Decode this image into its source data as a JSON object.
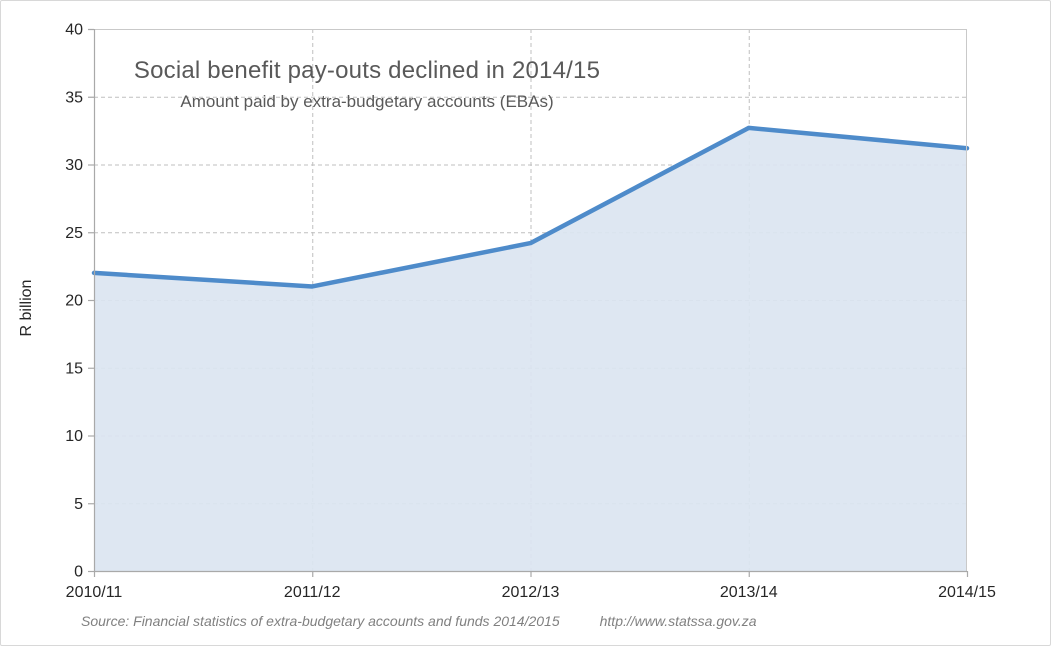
{
  "chart_data": {
    "type": "area",
    "title": "Social benefit pay-outs declined in 2014/15",
    "subtitle": "Amount paid by extra-budgetary accounts (EBAs)",
    "ylabel": "R billion",
    "categories": [
      "2010/11",
      "2011/12",
      "2012/13",
      "2013/14",
      "2014/15"
    ],
    "values": [
      22.0,
      21.0,
      24.2,
      32.7,
      31.2
    ],
    "ylim": [
      0,
      40
    ],
    "ytick_step": 5,
    "grid": true,
    "legend": false,
    "source": "Source: Financial statistics of  extra-budgetary accounts and funds 2014/2015",
    "source_url": "http://www.statssa.gov.za",
    "colors": {
      "line": "#4e8bca",
      "fill": "#dbe5f1",
      "grid": "#bfbfbf",
      "axis": "#a9a9a9",
      "border": "#c9c9c9",
      "title_text": "#595959",
      "tick_text": "#262626",
      "source_text": "#808080"
    }
  }
}
